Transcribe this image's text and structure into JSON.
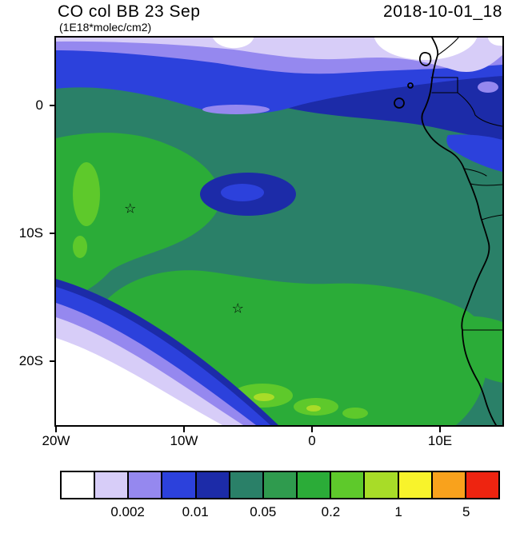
{
  "header": {
    "title": "CO col BB 23 Sep",
    "subtitle": "(1E18*molec/cm2)",
    "timestamp": "2018-10-01_18"
  },
  "map": {
    "lon_min": -20,
    "lon_max": 14.875,
    "lat_min": -25,
    "lat_max": 5.3125,
    "x_ticks": [
      {
        "label": "20W",
        "lon": -20
      },
      {
        "label": "10W",
        "lon": -10
      },
      {
        "label": "0",
        "lon": 0
      },
      {
        "label": "10E",
        "lon": 10
      }
    ],
    "y_ticks": [
      {
        "label": "0",
        "lat": 0
      },
      {
        "label": "10S",
        "lat": -10
      },
      {
        "label": "20S",
        "lat": -20
      }
    ],
    "markers": [
      {
        "symbol": "star",
        "lon": -14.2,
        "lat": -8.1
      },
      {
        "symbol": "star",
        "lon": -5.8,
        "lat": -15.9
      }
    ]
  },
  "colorbar": {
    "colors": [
      "#ffffff",
      "#d7cdf8",
      "#9588ef",
      "#2c41dc",
      "#1c2ba8",
      "#2a8068",
      "#2f9b4e",
      "#2bac38",
      "#5ec92b",
      "#a8dc28",
      "#f8f32b",
      "#f9a21c",
      "#ee2410"
    ],
    "tick_labels": [
      {
        "label": "0.002",
        "boundary": 2
      },
      {
        "label": "0.01",
        "boundary": 4
      },
      {
        "label": "0.05",
        "boundary": 6
      },
      {
        "label": "0.2",
        "boundary": 8
      },
      {
        "label": "1",
        "boundary": 10
      },
      {
        "label": "5",
        "boundary": 12
      }
    ]
  },
  "chart_data": {
    "type": "heatmap",
    "title": "CO col BB 23 Sep",
    "units": "1E18*molec/cm2",
    "timestamp": "2018-10-01_18",
    "x_axis": {
      "tick_labels": [
        "20W",
        "10W",
        "0",
        "10E"
      ],
      "range_deg_lon": [
        -20,
        15
      ]
    },
    "y_axis": {
      "tick_labels": [
        "0",
        "10S",
        "20S"
      ],
      "range_deg_lat": [
        -25,
        5
      ]
    },
    "colorbar_tick_labels": [
      "0.002",
      "0.01",
      "0.05",
      "0.2",
      "1",
      "5"
    ],
    "n_color_bins": 13,
    "legend_position": "bottom",
    "markers": [
      {
        "symbol": "open-star",
        "lon": -14.2,
        "lat": -8.1
      },
      {
        "symbol": "open-star",
        "lon": -5.8,
        "lat": -15.9
      }
    ],
    "regions": [
      {
        "value_range": "<0.002",
        "where": "far southwest corner triangle; small white patches along the northern edge"
      },
      {
        "value_range": "0.002-0.01",
        "where": "lavender/periwinkle/blue bands across the north edge and fringing the southwest corner"
      },
      {
        "value_range": "0.01-0.02",
        "where": "dark blue band near the equator across the top, over the Congo coast, and a closed minimum ellipse near 5W 7S"
      },
      {
        "value_range": "0.02-0.05",
        "where": "broad dark teal field over the central ocean basin and most land areas"
      },
      {
        "value_range": "0.1-0.2",
        "where": "large green plume covering the western and southern interior ocean and southern Angola"
      },
      {
        "value_range": "0.2-1",
        "where": "bright/yellow-green maxima near 17W 8-13S and near the bottom center"
      }
    ]
  }
}
